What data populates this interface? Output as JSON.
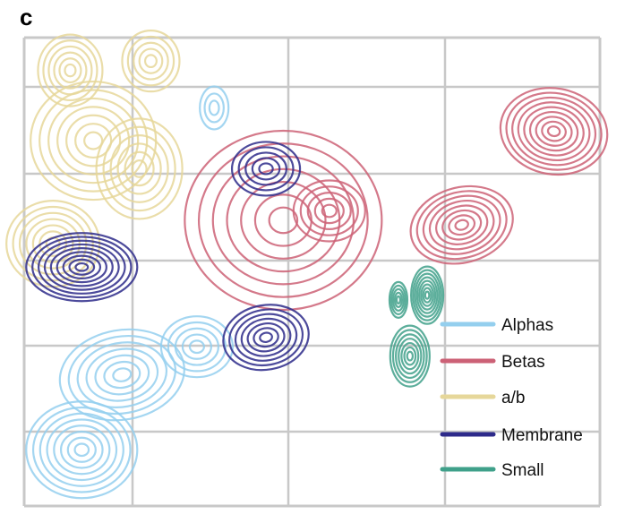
{
  "panel_label": "c",
  "chart_data": {
    "type": "contour density",
    "xlabel": "",
    "ylabel": "",
    "grid": true,
    "legend_placement": "bottom-right",
    "series": [
      {
        "name": "Alphas",
        "color": "#94cfee",
        "peaks": [
          [
            0.1,
            0.12,
            0.9
          ],
          [
            0.17,
            0.28,
            0.75
          ],
          [
            0.3,
            0.34,
            0.55
          ],
          [
            0.33,
            0.85,
            0.3
          ]
        ]
      },
      {
        "name": "Betas",
        "color": "#cc6176",
        "peaks": [
          [
            0.92,
            0.8,
            0.95
          ],
          [
            0.76,
            0.6,
            0.9
          ],
          [
            0.45,
            0.61,
            0.8
          ],
          [
            0.53,
            0.63,
            0.55
          ]
        ]
      },
      {
        "name": "a/b",
        "color": "#e6d79a",
        "peaks": [
          [
            0.05,
            0.56,
            0.8
          ],
          [
            0.12,
            0.78,
            0.75
          ],
          [
            0.08,
            0.93,
            0.7
          ],
          [
            0.22,
            0.95,
            0.6
          ],
          [
            0.2,
            0.72,
            0.65
          ]
        ]
      },
      {
        "name": "Membrane",
        "color": "#2d2a8a",
        "peaks": [
          [
            0.1,
            0.51,
            0.95
          ],
          [
            0.42,
            0.36,
            0.75
          ],
          [
            0.42,
            0.72,
            0.55
          ]
        ]
      },
      {
        "name": "Small",
        "color": "#3fa08a",
        "peaks": [
          [
            0.7,
            0.45,
            0.85
          ],
          [
            0.67,
            0.32,
            0.8
          ],
          [
            0.65,
            0.44,
            0.5
          ]
        ]
      }
    ]
  },
  "legend": [
    {
      "label": "Alphas",
      "color": "#94cfee"
    },
    {
      "label": "Betas",
      "color": "#cc6176"
    },
    {
      "label": "a/b",
      "color": "#e6d79a"
    },
    {
      "label": "Membrane",
      "color": "#2d2a8a"
    },
    {
      "label": "Small",
      "color": "#3fa08a"
    }
  ]
}
